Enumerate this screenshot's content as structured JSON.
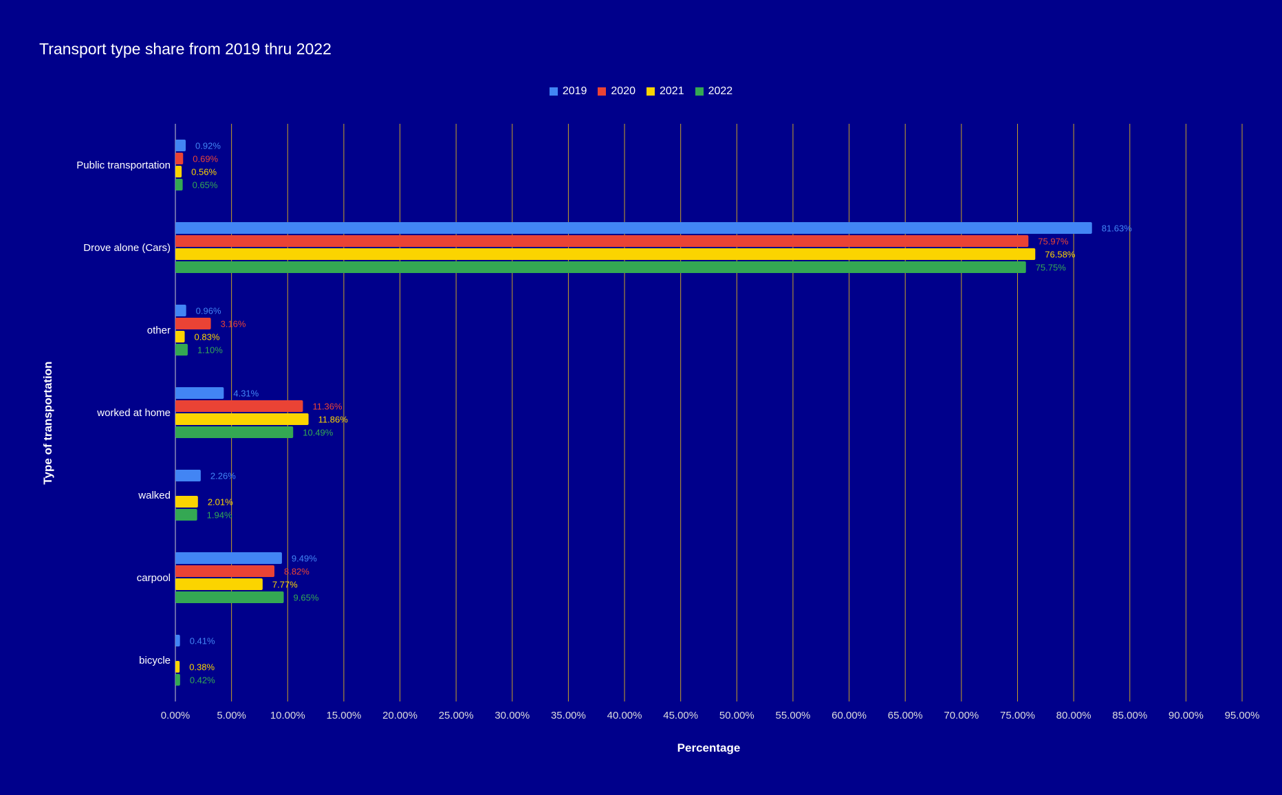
{
  "chart_data": {
    "type": "bar",
    "orientation": "horizontal",
    "title": "Transport type share from 2019 thru 2022",
    "xlabel": "Percentage",
    "ylabel": "Type of transportation",
    "xlim": [
      0,
      95
    ],
    "x_ticks": [
      "0.00%",
      "5.00%",
      "10.00%",
      "15.00%",
      "20.00%",
      "25.00%",
      "30.00%",
      "35.00%",
      "40.00%",
      "45.00%",
      "50.00%",
      "55.00%",
      "60.00%",
      "65.00%",
      "70.00%",
      "75.00%",
      "80.00%",
      "85.00%",
      "90.00%",
      "95.00%"
    ],
    "grid": true,
    "legend_position": "top",
    "categories": [
      "Public transportation",
      "Drove alone (Cars)",
      "other",
      "worked at home",
      "walked",
      "carpool",
      "bicycle"
    ],
    "series": [
      {
        "name": "2019",
        "color": "#4285f4",
        "values": [
          0.92,
          81.63,
          0.96,
          4.31,
          2.26,
          9.49,
          0.41
        ],
        "labels": [
          "0.92%",
          "81.63%",
          "0.96%",
          "4.31%",
          "2.26%",
          "9.49%",
          "0.41%"
        ]
      },
      {
        "name": "2020",
        "color": "#ea4335",
        "values": [
          0.69,
          75.97,
          3.16,
          11.36,
          null,
          8.82,
          null
        ],
        "labels": [
          "0.69%",
          "75.97%",
          "3.16%",
          "11.36%",
          "",
          "8.82%",
          ""
        ]
      },
      {
        "name": "2021",
        "color": "#fbd400",
        "values": [
          0.56,
          76.58,
          0.83,
          11.86,
          2.01,
          7.77,
          0.38
        ],
        "labels": [
          "0.56%",
          "76.58%",
          "0.83%",
          "11.86%",
          "2.01%",
          "7.77%",
          "0.38%"
        ]
      },
      {
        "name": "2022",
        "color": "#34a853",
        "values": [
          0.65,
          75.75,
          1.1,
          10.49,
          1.94,
          9.65,
          0.42
        ],
        "labels": [
          "0.65%",
          "75.75%",
          "1.10%",
          "10.49%",
          "1.94%",
          "9.65%",
          "0.42%"
        ]
      }
    ],
    "colors": {
      "background": "#00008b",
      "gridline": "#c9a227",
      "text": "#ffffff",
      "tick_text": "#dddddd"
    }
  }
}
